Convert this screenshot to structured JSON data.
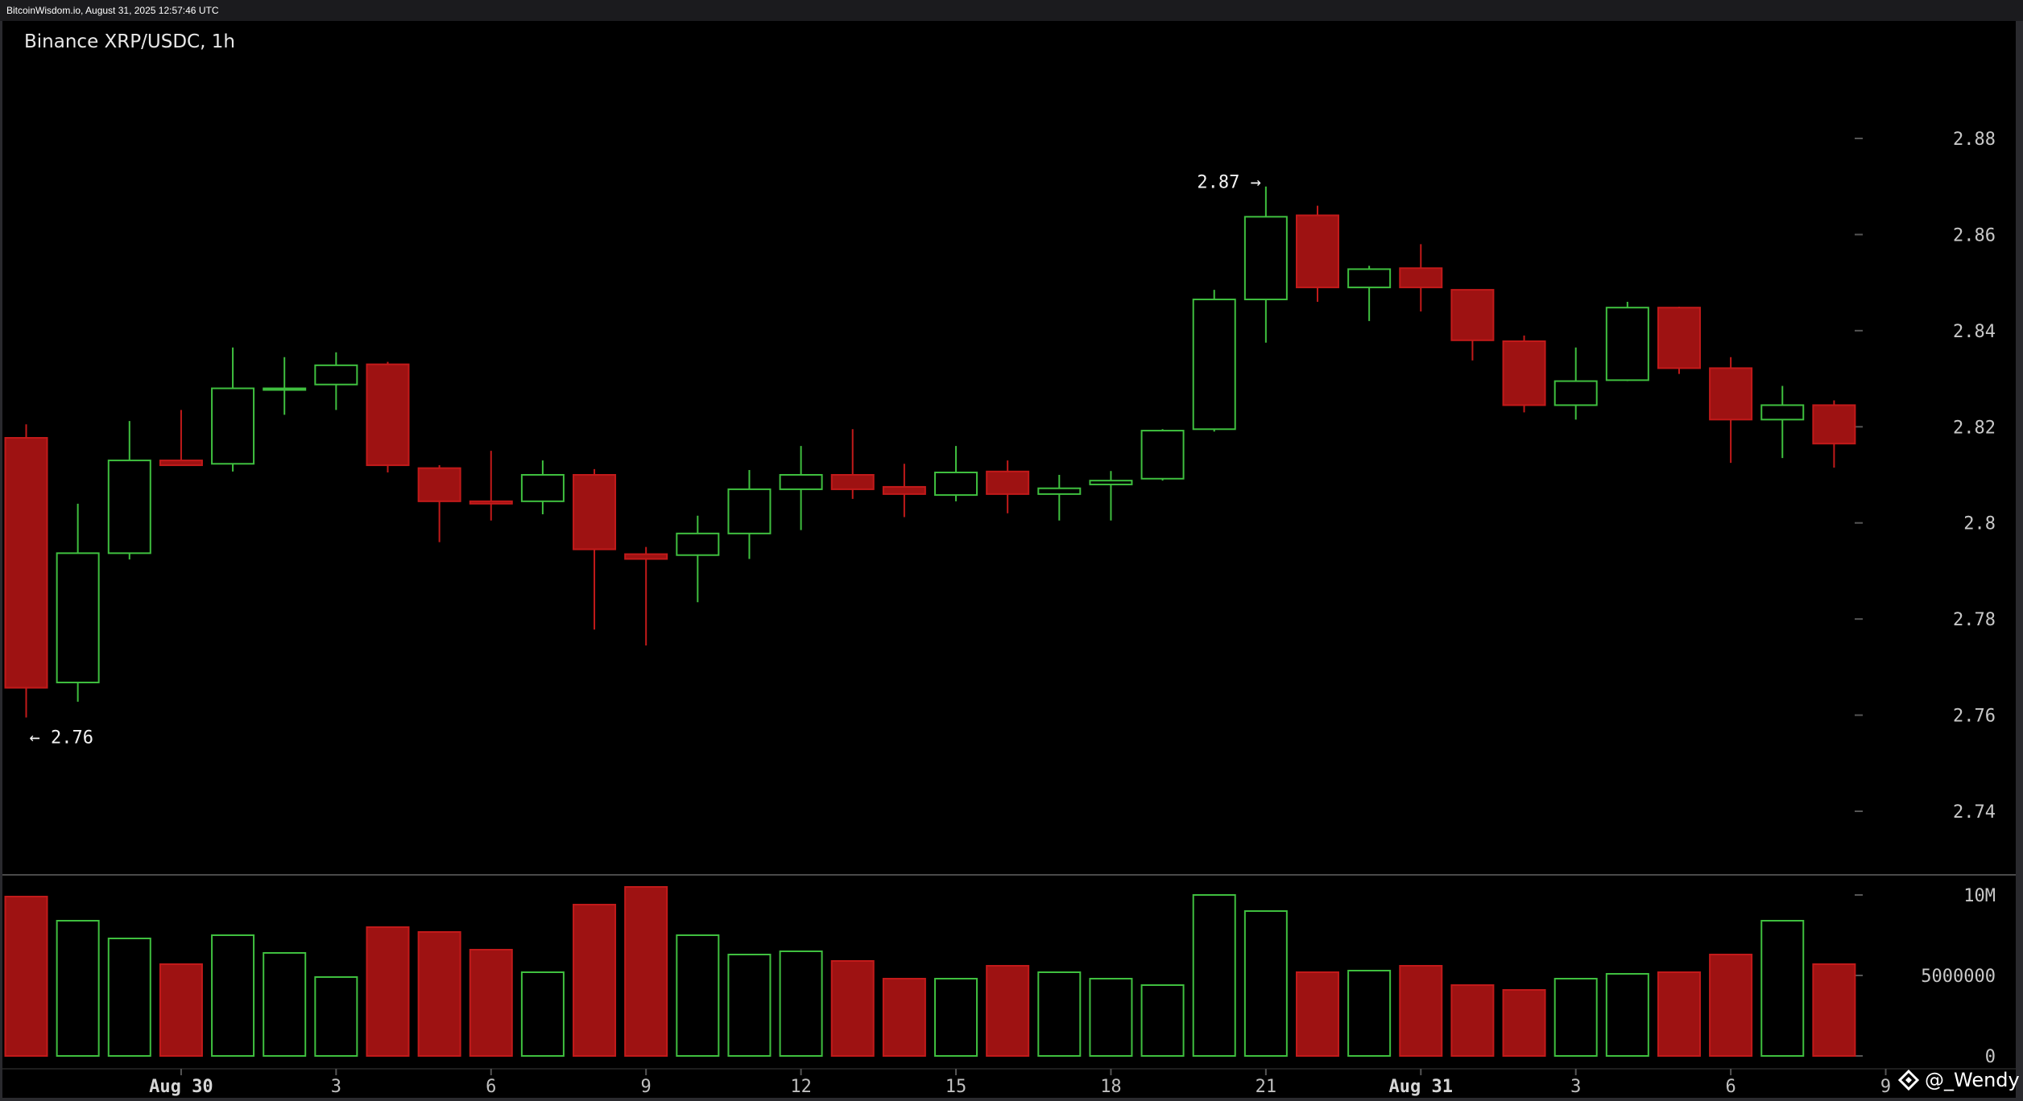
{
  "header": {
    "source_line": "BitcoinWisdom.io, August 31, 2025 12:57:46 UTC"
  },
  "chart_data": {
    "type": "candlestick",
    "title": "Binance XRP/USDC, 1h",
    "price_axis": {
      "ticks": [
        "2.88",
        "2.86",
        "2.84",
        "2.82",
        "2.8",
        "2.78",
        "2.76",
        "2.74"
      ],
      "range": [
        2.72,
        2.9
      ]
    },
    "volume_axis": {
      "ticks": [
        "10M",
        "5000000",
        "0"
      ],
      "range": [
        0,
        10000000
      ]
    },
    "x_tick_labels": [
      {
        "label": "Aug 30",
        "index": 3,
        "bold": true
      },
      {
        "label": "3",
        "index": 6
      },
      {
        "label": "6",
        "index": 9
      },
      {
        "label": "9",
        "index": 12
      },
      {
        "label": "12",
        "index": 15
      },
      {
        "label": "15",
        "index": 18
      },
      {
        "label": "18",
        "index": 21
      },
      {
        "label": "21",
        "index": 24
      },
      {
        "label": "Aug 31",
        "index": 27,
        "bold": true
      },
      {
        "label": "3",
        "index": 30
      },
      {
        "label": "6",
        "index": 33
      },
      {
        "label": "9",
        "index": 36
      }
    ],
    "annotations": [
      {
        "text": "2.87 →",
        "price": 2.87,
        "index": 24,
        "side": "left"
      },
      {
        "text": "← 2.76",
        "price": 2.7595,
        "index": 0,
        "side": "right"
      }
    ],
    "candles": [
      {
        "open": 2.8177,
        "high": 2.8205,
        "low": 2.7595,
        "close": 2.7657,
        "volume": 9900000
      },
      {
        "open": 2.7668,
        "high": 2.804,
        "low": 2.7628,
        "close": 2.7937,
        "volume": 8400000
      },
      {
        "open": 2.7937,
        "high": 2.8212,
        "low": 2.7924,
        "close": 2.813,
        "volume": 7300000
      },
      {
        "open": 2.813,
        "high": 2.8235,
        "low": 2.8123,
        "close": 2.812,
        "volume": 5700000
      },
      {
        "open": 2.8123,
        "high": 2.8365,
        "low": 2.8107,
        "close": 2.828,
        "volume": 7500000
      },
      {
        "open": 2.828,
        "high": 2.8345,
        "low": 2.8225,
        "close": 2.828,
        "volume": 6400000
      },
      {
        "open": 2.8288,
        "high": 2.8355,
        "low": 2.8235,
        "close": 2.8328,
        "volume": 4900000
      },
      {
        "open": 2.833,
        "high": 2.8335,
        "low": 2.8105,
        "close": 2.812,
        "volume": 8000000
      },
      {
        "open": 2.8114,
        "high": 2.812,
        "low": 2.796,
        "close": 2.8045,
        "volume": 7700000
      },
      {
        "open": 2.8045,
        "high": 2.815,
        "low": 2.8005,
        "close": 2.804,
        "volume": 6600000
      },
      {
        "open": 2.8045,
        "high": 2.813,
        "low": 2.8018,
        "close": 2.81,
        "volume": 5200000
      },
      {
        "open": 2.81,
        "high": 2.8112,
        "low": 2.7778,
        "close": 2.7945,
        "volume": 9400000
      },
      {
        "open": 2.7935,
        "high": 2.795,
        "low": 2.7745,
        "close": 2.7925,
        "volume": 10500000
      },
      {
        "open": 2.7933,
        "high": 2.8015,
        "low": 2.7835,
        "close": 2.7978,
        "volume": 7500000
      },
      {
        "open": 2.7978,
        "high": 2.811,
        "low": 2.7925,
        "close": 2.807,
        "volume": 6300000
      },
      {
        "open": 2.807,
        "high": 2.816,
        "low": 2.7985,
        "close": 2.81,
        "volume": 6500000
      },
      {
        "open": 2.81,
        "high": 2.8195,
        "low": 2.805,
        "close": 2.807,
        "volume": 5900000
      },
      {
        "open": 2.8075,
        "high": 2.8123,
        "low": 2.8012,
        "close": 2.806,
        "volume": 4800000
      },
      {
        "open": 2.8058,
        "high": 2.816,
        "low": 2.8045,
        "close": 2.8105,
        "volume": 4800000
      },
      {
        "open": 2.8107,
        "high": 2.813,
        "low": 2.802,
        "close": 2.806,
        "volume": 5600000
      },
      {
        "open": 2.806,
        "high": 2.81,
        "low": 2.8005,
        "close": 2.8072,
        "volume": 5200000
      },
      {
        "open": 2.808,
        "high": 2.8108,
        "low": 2.8005,
        "close": 2.8088,
        "volume": 4800000
      },
      {
        "open": 2.8092,
        "high": 2.8195,
        "low": 2.8088,
        "close": 2.8192,
        "volume": 4400000
      },
      {
        "open": 2.8195,
        "high": 2.8485,
        "low": 2.819,
        "close": 2.8465,
        "volume": 10000000
      },
      {
        "open": 2.8465,
        "high": 2.87,
        "low": 2.8375,
        "close": 2.8637,
        "volume": 9000000
      },
      {
        "open": 2.864,
        "high": 2.866,
        "low": 2.846,
        "close": 2.849,
        "volume": 5200000
      },
      {
        "open": 2.849,
        "high": 2.8535,
        "low": 2.842,
        "close": 2.8528,
        "volume": 5300000
      },
      {
        "open": 2.853,
        "high": 2.858,
        "low": 2.844,
        "close": 2.849,
        "volume": 5600000
      },
      {
        "open": 2.8485,
        "high": 2.8485,
        "low": 2.8338,
        "close": 2.838,
        "volume": 4400000
      },
      {
        "open": 2.8378,
        "high": 2.839,
        "low": 2.823,
        "close": 2.8245,
        "volume": 4100000
      },
      {
        "open": 2.8245,
        "high": 2.8365,
        "low": 2.8215,
        "close": 2.8295,
        "volume": 4800000
      },
      {
        "open": 2.8297,
        "high": 2.846,
        "low": 2.8295,
        "close": 2.8448,
        "volume": 5100000
      },
      {
        "open": 2.8448,
        "high": 2.845,
        "low": 2.831,
        "close": 2.8322,
        "volume": 5200000
      },
      {
        "open": 2.8322,
        "high": 2.8345,
        "low": 2.8125,
        "close": 2.8215,
        "volume": 6300000
      },
      {
        "open": 2.8215,
        "high": 2.8285,
        "low": 2.8135,
        "close": 2.8245,
        "volume": 8400000
      },
      {
        "open": 2.8245,
        "high": 2.8255,
        "low": 2.8115,
        "close": 2.8165,
        "volume": 5700000
      }
    ]
  },
  "watermark": {
    "text": "@_Wendy",
    "icon": "binance-square-icon"
  },
  "colors": {
    "background": "#000000",
    "up": "#3fbf3f",
    "down_fill": "#9e1212",
    "down_stroke": "#c21a1a",
    "grid_tick": "#555555",
    "separator": "#4a4a4a"
  }
}
